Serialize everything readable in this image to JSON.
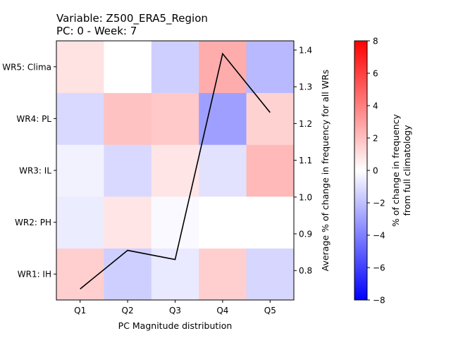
{
  "chart_data": [
    {
      "type": "heatmap",
      "title_line1": "Variable: Z500_ERA5_Region",
      "title_line2": "PC: 0 - Week: 7",
      "xlabel": "PC Magnitude distribution",
      "ylabel": "",
      "x_categories": [
        "Q1",
        "Q2",
        "Q3",
        "Q4",
        "Q5"
      ],
      "y_categories": [
        "WR1: IH",
        "WR2: PH",
        "WR3: IL",
        "WR4: PL",
        "WR5: Clima"
      ],
      "values": [
        [
          1.5,
          -1.5,
          -0.7,
          1.5,
          -1.3
        ],
        [
          -0.6,
          0.8,
          -0.2,
          0.0,
          0.0
        ],
        [
          -0.4,
          -1.2,
          0.8,
          -0.9,
          2.2
        ],
        [
          -1.2,
          1.9,
          1.7,
          -3.0,
          1.4
        ],
        [
          0.9,
          0.0,
          -1.5,
          2.6,
          -2.2
        ]
      ],
      "colormap": "bwr",
      "vmin": -8,
      "vmax": 8,
      "colorbar": {
        "label_line1": "% of change in frequency",
        "label_line2": "from full climatology",
        "ticks": [
          "8",
          "6",
          "4",
          "2",
          "0",
          "−2",
          "−4",
          "−6",
          "−8"
        ],
        "tick_values": [
          8,
          6,
          4,
          2,
          0,
          -2,
          -4,
          -6,
          -8
        ]
      }
    },
    {
      "type": "line",
      "x": [
        "Q1",
        "Q2",
        "Q3",
        "Q4",
        "Q5"
      ],
      "values": [
        0.75,
        0.855,
        0.83,
        1.39,
        1.23
      ],
      "color": "#000000",
      "ylabel": "Average % of change in frequency for all WRs",
      "ylim": [
        0.72,
        1.425
      ],
      "yticks": [
        "1.4",
        "1.3",
        "1.2",
        "1.1",
        "1.0",
        "0.9",
        "0.8"
      ],
      "ytick_values": [
        1.4,
        1.3,
        1.2,
        1.1,
        1.0,
        0.9,
        0.8
      ]
    }
  ]
}
